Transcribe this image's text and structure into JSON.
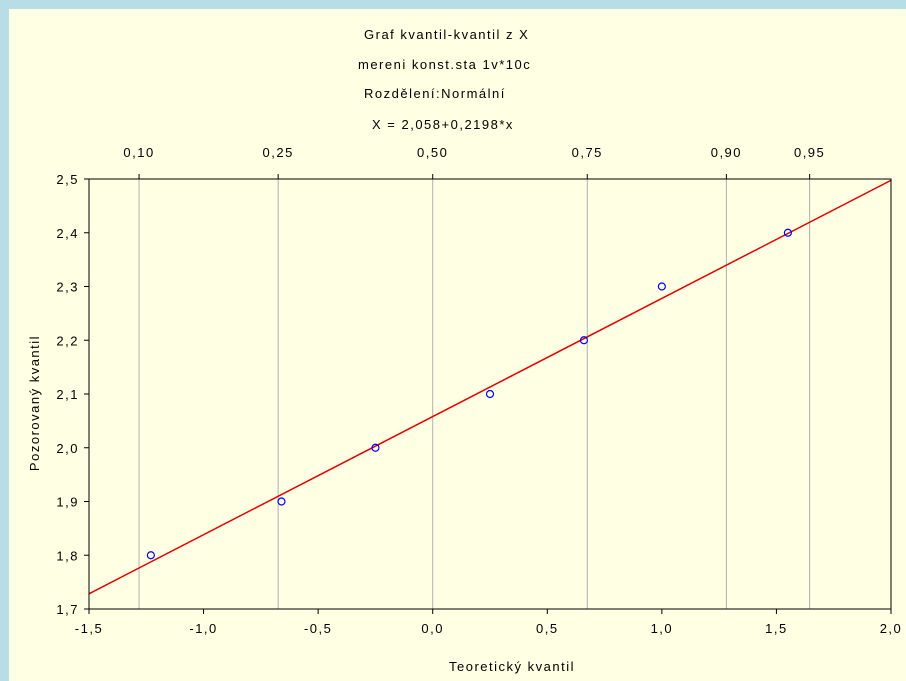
{
  "chart_data": {
    "type": "scatter",
    "title_lines": [
      "Graf kvantil-kvantil z X",
      "mereni konst.sta 1v*10c",
      "Rozdělení:Normální",
      "X = 2,058+0,2198*x"
    ],
    "xlabel": "Teoretický kvantil",
    "ylabel": "Pozorovaný kvantil",
    "xlim": [
      -1.5,
      2.0
    ],
    "ylim": [
      1.7,
      2.5
    ],
    "x_ticks": [
      "-1,5",
      "-1,0",
      "-0,5",
      "0,0",
      "0,5",
      "1,0",
      "1,5",
      "2,0"
    ],
    "x_tick_values": [
      -1.5,
      -1.0,
      -0.5,
      0.0,
      0.5,
      1.0,
      1.5,
      2.0
    ],
    "y_ticks": [
      "1,7",
      "1,8",
      "1,9",
      "2,0",
      "2,1",
      "2,2",
      "2,3",
      "2,4",
      "2,5"
    ],
    "y_tick_values": [
      1.7,
      1.8,
      1.9,
      2.0,
      2.1,
      2.2,
      2.3,
      2.4,
      2.5
    ],
    "top_axis": {
      "labels": [
        "0,10",
        "0,25",
        "0,50",
        "0,75",
        "0,90",
        "0,95"
      ],
      "quantiles": [
        -1.2816,
        -0.6745,
        0.0,
        0.6745,
        1.2816,
        1.6449
      ]
    },
    "points": [
      {
        "x": -1.23,
        "y": 1.8
      },
      {
        "x": -0.66,
        "y": 1.9
      },
      {
        "x": -0.25,
        "y": 2.0
      },
      {
        "x": 0.25,
        "y": 2.1
      },
      {
        "x": 0.66,
        "y": 2.2
      },
      {
        "x": 1.0,
        "y": 2.3
      },
      {
        "x": 1.55,
        "y": 2.4
      }
    ],
    "fit_line": {
      "intercept": 2.058,
      "slope": 0.2198
    },
    "grid": "vertical at quantile positions",
    "colors": {
      "points": "#0000ff",
      "fit_line": "#e00000",
      "grid": "#b0b0b0",
      "background": "#ffffe3",
      "frame": "#b7dde6"
    }
  }
}
